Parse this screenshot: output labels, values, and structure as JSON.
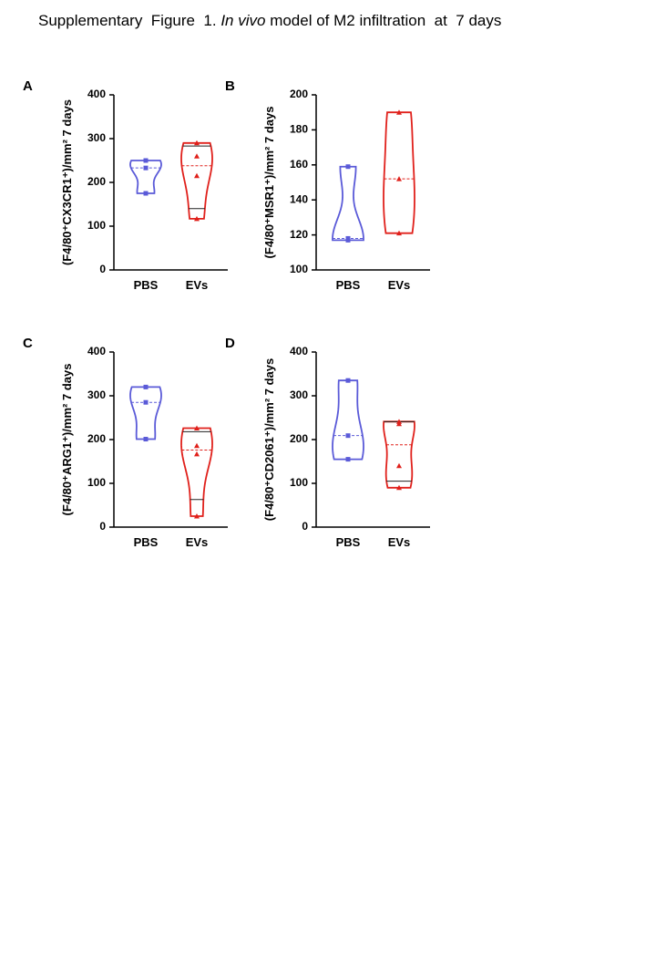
{
  "title_runs": [
    "Supplementary  Figure  1. ",
    "In vivo",
    " model of M2 infiltration  at  7 days"
  ],
  "chart_data": [
    {
      "label": "A",
      "type": "violin",
      "ylabel": "(F4/80⁺CX3CR1⁺)/mm² 7 days",
      "categories": [
        "PBS",
        "EVs"
      ],
      "groups": [
        {
          "color": "#5a5ad8",
          "marker": "square",
          "values": [
            250,
            233,
            175
          ],
          "median": 233
        },
        {
          "color": "#e0201b",
          "marker": "triangle",
          "values": [
            290,
            260,
            215,
            117
          ],
          "median": 238,
          "quartiles": [
            140,
            283
          ]
        }
      ],
      "ylim": [
        0,
        400
      ],
      "yticks": [
        0,
        100,
        200,
        300,
        400
      ]
    },
    {
      "label": "B",
      "type": "violin",
      "ylabel": "(F4/80⁺MSR1⁺)/mm² 7 days",
      "categories": [
        "PBS",
        "EVs"
      ],
      "groups": [
        {
          "color": "#5a5ad8",
          "marker": "square",
          "values": [
            159,
            118,
            117
          ],
          "median": 118
        },
        {
          "color": "#e0201b",
          "marker": "triangle",
          "values": [
            190,
            152,
            121
          ],
          "median": 152
        }
      ],
      "ylim": [
        100,
        200
      ],
      "yticks": [
        100,
        120,
        140,
        160,
        180,
        200
      ]
    },
    {
      "label": "C",
      "type": "violin",
      "ylabel": "(F4/80⁺ARG1⁺)/mm² 7 days",
      "categories": [
        "PBS",
        "EVs"
      ],
      "groups": [
        {
          "color": "#5a5ad8",
          "marker": "square",
          "values": [
            320,
            285,
            201
          ],
          "median": 285
        },
        {
          "color": "#e0201b",
          "marker": "triangle",
          "values": [
            226,
            186,
            167,
            25
          ],
          "median": 176,
          "quartiles": [
            63,
            218
          ]
        }
      ],
      "ylim": [
        0,
        400
      ],
      "yticks": [
        0,
        100,
        200,
        300,
        400
      ]
    },
    {
      "label": "D",
      "type": "violin",
      "ylabel": "(F4/80⁺CD2061⁺)/mm² 7 days",
      "categories": [
        "PBS",
        "EVs"
      ],
      "groups": [
        {
          "color": "#5a5ad8",
          "marker": "square",
          "values": [
            335,
            209,
            155
          ],
          "median": 209
        },
        {
          "color": "#e0201b",
          "marker": "triangle",
          "values": [
            241,
            236,
            140,
            90
          ],
          "median": 188,
          "quartiles": [
            105,
            241
          ]
        }
      ],
      "ylim": [
        0,
        400
      ],
      "yticks": [
        0,
        100,
        200,
        300,
        400
      ]
    }
  ]
}
